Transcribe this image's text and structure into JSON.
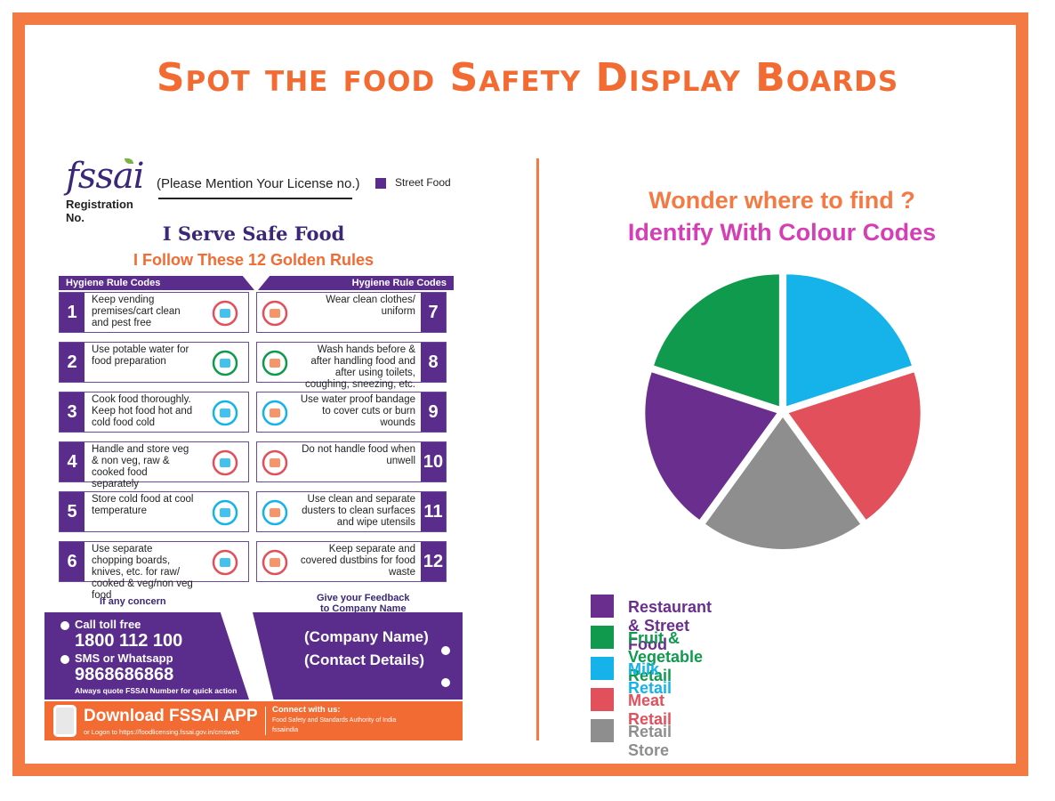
{
  "title": "Spot the food Safety Display Boards",
  "board": {
    "logo": "fssai",
    "registration": "Registration No.",
    "license_prompt": "(Please Mention Your License no.)",
    "category": "Street Food",
    "headline": "I Serve Safe Food",
    "subheadline": "I Follow These 12 Golden Rules",
    "header_left": "Hygiene Rule Codes",
    "header_right": "Hygiene Rule Codes",
    "rules_left": [
      {
        "num": "1",
        "text": "Keep vending premises/cart clean and pest free"
      },
      {
        "num": "2",
        "text": "Use potable water for food preparation"
      },
      {
        "num": "3",
        "text": "Cook food thoroughly. Keep hot food hot and cold food cold"
      },
      {
        "num": "4",
        "text": "Handle and store veg & non veg, raw & cooked food separately"
      },
      {
        "num": "5",
        "text": "Store cold food at cool temperature"
      },
      {
        "num": "6",
        "text": "Use separate chopping boards, knives, etc. for raw/ cooked & veg/non veg food"
      }
    ],
    "rules_right": [
      {
        "num": "7",
        "text": "Wear clean clothes/ uniform"
      },
      {
        "num": "8",
        "text": "Wash hands before & after handling food and after using toilets, coughing, sneezing, etc."
      },
      {
        "num": "9",
        "text": "Use water proof bandage to cover cuts or burn wounds"
      },
      {
        "num": "10",
        "text": "Do not handle food when unwell"
      },
      {
        "num": "11",
        "text": "Use clean and separate dusters to clean surfaces and wipe utensils"
      },
      {
        "num": "12",
        "text": "Keep separate and covered dustbins for food waste"
      }
    ],
    "concern": "If any concern",
    "feedback_1": "Give your Feedback",
    "feedback_2": "to Company Name",
    "toll_free_label": "Call toll free",
    "toll_free": "1800 112 100",
    "sms_label": "SMS or Whatsapp",
    "sms": "9868686868",
    "quote": "Always quote FSSAI Number for quick action",
    "company_name": "(Company Name)",
    "company_contact": "(Contact Details)",
    "download": "Download FSSAI APP",
    "download_sub": "or Logon to https://foodlicensing.fssai.gov.in/cmsweb",
    "connect": "Connect with us:",
    "connect_fb": "Food Safety and Standards Authority of India",
    "connect_tw": "fssaiindia"
  },
  "right": {
    "wonder": "Wonder where to find ?",
    "identify": "Identify With Colour Codes"
  },
  "colors": {
    "orange": "#f47a44",
    "purple": "#5a2d8c"
  },
  "legend": [
    {
      "label": "Restaurant & Street Food",
      "color": "#6a2f8e"
    },
    {
      "label": "Fruit & Vegetable Retail",
      "color": "#109a4e"
    },
    {
      "label": "Milk Retail",
      "color": "#15b3ea"
    },
    {
      "label": "Meat Retail",
      "color": "#e2505c"
    },
    {
      "label": "Retail Store",
      "color": "#8e8e8e"
    }
  ],
  "pie_segments": [
    {
      "name": "Milk Retail",
      "value": 20,
      "color": "#15b3ea"
    },
    {
      "name": "Meat Retail",
      "value": 20,
      "color": "#e2505c"
    },
    {
      "name": "Retail Store",
      "value": 20,
      "color": "#8e8e8e"
    },
    {
      "name": "Restaurant & Street Food",
      "value": 20,
      "color": "#6a2f8e"
    },
    {
      "name": "Fruit & Vegetable Retail",
      "value": 20,
      "color": "#109a4e"
    }
  ]
}
